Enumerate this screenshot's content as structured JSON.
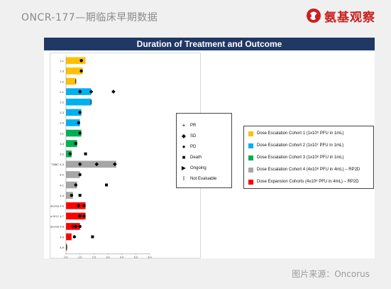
{
  "header": {
    "doc_title": "ONCR-177—期临床早期数据",
    "brand_name": "氨基观察",
    "brand_color": "#c8201e"
  },
  "slide": {
    "title": "Duration of Treatment and Outcome",
    "title_bg": "#1f3864"
  },
  "symbol_legend": [
    {
      "glyph": "+",
      "icon": "plus-icon",
      "label": "PR"
    },
    {
      "glyph": "◆",
      "icon": "diamond-icon",
      "label": "SD"
    },
    {
      "glyph": "●",
      "icon": "circle-icon",
      "label": "PD"
    },
    {
      "glyph": "■",
      "icon": "square-icon",
      "label": "Death"
    },
    {
      "glyph": "▶",
      "icon": "triangle-right-icon",
      "label": "Ongoing"
    },
    {
      "glyph": "I",
      "icon": "bar-icon",
      "label": "Not Evaluable"
    }
  ],
  "cohort_legend": [
    {
      "color": "#ffc000",
      "label": "Dose Escalation Cohort 1 (1x10⁶ PFU in 1mL)"
    },
    {
      "color": "#00b0f0",
      "label": "Dose Escalation Cohort 2 (1x10⁷ PFU in 1mL)"
    },
    {
      "color": "#00b050",
      "label": "Dose Escalation Cohort 3 (1x10⁸ PFU in 1mL)"
    },
    {
      "color": "#a6a6a6",
      "label": "Dose Escalation Cohort 4 (4x10⁸ PFU in 4mL) – RP2D"
    },
    {
      "color": "#ff0000",
      "label": "Dose Expansion Cohorts (4x10⁸ PFU in 4mL) – RP2D"
    }
  ],
  "source": "图片来源：Oncorus",
  "chart_data": {
    "type": "bar",
    "orientation": "horizontal",
    "title": "",
    "xlabel": "Duration of Treatment (Months)",
    "ylabel": "",
    "xlim": [
      0,
      6.0
    ],
    "xticks": [
      "0.0",
      "1.0",
      "2.0",
      "3.0",
      "4.0",
      "5.0",
      "6.0"
    ],
    "grid": false,
    "colors": {
      "1": "#ffc000",
      "2": "#00b0f0",
      "3": "#00b050",
      "4": "#a6a6a6",
      "5": "#ff0000"
    },
    "patients": [
      {
        "label": "1-1",
        "cohort": 1,
        "duration": 1.4,
        "markers": [
          {
            "type": "PD",
            "x": 1.1
          }
        ]
      },
      {
        "label": "1-3",
        "cohort": 1,
        "duration": 1.2,
        "markers": [
          {
            "type": "PD",
            "x": 1.1
          }
        ]
      },
      {
        "label": "1-2",
        "cohort": 1,
        "duration": 0.7,
        "markers": [
          {
            "type": "NE",
            "x": 0.7
          }
        ]
      },
      {
        "label": "2-1",
        "cohort": 2,
        "duration": 1.8,
        "markers": [
          {
            "type": "SD",
            "x": 1.0
          },
          {
            "type": "SD",
            "x": 1.8
          },
          {
            "type": "SD",
            "x": 3.4
          }
        ]
      },
      {
        "label": "2-2",
        "cohort": 2,
        "duration": 1.8,
        "markers": [
          {
            "type": "NE",
            "x": 1.8
          }
        ]
      },
      {
        "label": "2-3",
        "cohort": 2,
        "duration": 1.1,
        "markers": [
          {
            "type": "PD",
            "x": 1.0
          }
        ]
      },
      {
        "label": "2-4",
        "cohort": 2,
        "duration": 1.0,
        "markers": [
          {
            "type": "PD",
            "x": 0.9
          }
        ]
      },
      {
        "label": "3-1",
        "cohort": 3,
        "duration": 1.1,
        "markers": [
          {
            "type": "PD",
            "x": 1.0
          }
        ]
      },
      {
        "label": "3-3",
        "cohort": 3,
        "duration": 0.8,
        "markers": [
          {
            "type": "PD",
            "x": 0.7
          }
        ]
      },
      {
        "label": "3-2",
        "cohort": 3,
        "duration": 0.4,
        "markers": [
          {
            "type": "PD",
            "x": 0.3
          },
          {
            "type": "Death",
            "x": 1.4
          }
        ]
      },
      {
        "label": "TNBC 4-3",
        "cohort": 4,
        "duration": 3.6,
        "markers": [
          {
            "type": "SD",
            "x": 1.0
          },
          {
            "type": "SD",
            "x": 2.2
          },
          {
            "type": "SD",
            "x": 3.5
          }
        ]
      },
      {
        "label": "4-2",
        "cohort": 4,
        "duration": 1.0,
        "markers": [
          {
            "type": "PD",
            "x": 1.0
          }
        ]
      },
      {
        "label": "4-1",
        "cohort": 4,
        "duration": 0.8,
        "markers": [
          {
            "type": "PD",
            "x": 0.7
          },
          {
            "type": "Death",
            "x": 2.9
          }
        ]
      },
      {
        "label": "4-4",
        "cohort": 4,
        "duration": 0.5,
        "markers": [
          {
            "type": "PD",
            "x": 0.4
          },
          {
            "type": "Death",
            "x": 1.0
          }
        ]
      },
      {
        "label": "Melanoma 4-6",
        "cohort": 5,
        "duration": 1.4,
        "markers": [
          {
            "type": "SD",
            "x": 0.9
          },
          {
            "type": "PD",
            "x": 1.3
          }
        ]
      },
      {
        "label": "Oropharyngeal SCC 4-7",
        "cohort": 5,
        "duration": 1.4,
        "markers": [
          {
            "type": "SD",
            "x": 1.0
          },
          {
            "type": "PD",
            "x": 1.3
          }
        ]
      },
      {
        "label": "Melanoma 4-8",
        "cohort": 5,
        "duration": 1.0,
        "markers": [
          {
            "type": "PR",
            "x": 0.5
          },
          {
            "type": "SD",
            "x": 0.7
          },
          {
            "type": "PD",
            "x": 1.0
          }
        ]
      },
      {
        "label": "4-5",
        "cohort": 5,
        "duration": 0.4,
        "markers": [
          {
            "type": "PD",
            "x": 0.6
          },
          {
            "type": "Death",
            "x": 1.9
          }
        ]
      },
      {
        "label": "4-9",
        "cohort": 5,
        "duration": 0.05,
        "markers": [
          {
            "type": "NE",
            "x": 0.05
          }
        ]
      }
    ]
  }
}
